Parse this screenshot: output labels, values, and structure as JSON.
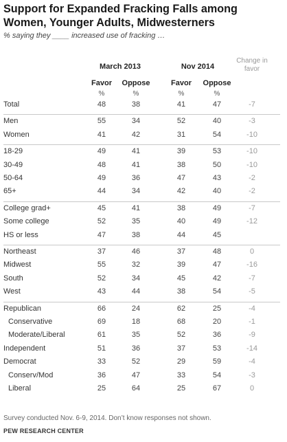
{
  "title": "Support for Expanded Fracking Falls among Women, Younger Adults, Midwesterners",
  "subtitle": "% saying they ____ increased use of fracking …",
  "column_groups": [
    "March 2013",
    "Nov 2014"
  ],
  "change_header": "Change in favor",
  "columns": [
    "Favor",
    "Oppose",
    "Favor",
    "Oppose"
  ],
  "pct_symbol": "%",
  "note": "Survey conducted Nov. 6-9, 2014. Don’t know responses not shown.",
  "source": "PEW RESEARCH CENTER",
  "chart_data": {
    "type": "table",
    "title": "Support for Expanded Fracking Falls among Women, Younger Adults, Midwesterners",
    "column_groups": [
      "March 2013",
      "Nov 2014"
    ],
    "columns": [
      "Favor",
      "Oppose",
      "Favor",
      "Oppose",
      "Change in favor"
    ],
    "rows": [
      {
        "label": "Total",
        "values": [
          "48",
          "38",
          "41",
          "47",
          "-7"
        ],
        "sub": false,
        "sep": false
      },
      {
        "label": "Men",
        "values": [
          "55",
          "34",
          "52",
          "40",
          "-3"
        ],
        "sub": false,
        "sep": true
      },
      {
        "label": "Women",
        "values": [
          "41",
          "42",
          "31",
          "54",
          "-10"
        ],
        "sub": false,
        "sep": false
      },
      {
        "label": "18-29",
        "values": [
          "49",
          "41",
          "39",
          "53",
          "-10"
        ],
        "sub": false,
        "sep": true
      },
      {
        "label": "30-49",
        "values": [
          "48",
          "41",
          "38",
          "50",
          "-10"
        ],
        "sub": false,
        "sep": false
      },
      {
        "label": "50-64",
        "values": [
          "49",
          "36",
          "47",
          "43",
          "-2"
        ],
        "sub": false,
        "sep": false
      },
      {
        "label": "65+",
        "values": [
          "44",
          "34",
          "42",
          "40",
          "-2"
        ],
        "sub": false,
        "sep": false
      },
      {
        "label": "College grad+",
        "values": [
          "45",
          "41",
          "38",
          "49",
          "-7"
        ],
        "sub": false,
        "sep": true
      },
      {
        "label": "Some college",
        "values": [
          "52",
          "35",
          "40",
          "49",
          "-12"
        ],
        "sub": false,
        "sep": false
      },
      {
        "label": "HS or less",
        "values": [
          "47",
          "38",
          "44",
          "45",
          ""
        ],
        "sub": false,
        "sep": false
      },
      {
        "label": "Northeast",
        "values": [
          "37",
          "46",
          "37",
          "48",
          "0"
        ],
        "sub": false,
        "sep": true
      },
      {
        "label": "Midwest",
        "values": [
          "55",
          "32",
          "39",
          "47",
          "-16"
        ],
        "sub": false,
        "sep": false
      },
      {
        "label": "South",
        "values": [
          "52",
          "34",
          "45",
          "42",
          "-7"
        ],
        "sub": false,
        "sep": false
      },
      {
        "label": "West",
        "values": [
          "43",
          "44",
          "38",
          "54",
          "-5"
        ],
        "sub": false,
        "sep": false
      },
      {
        "label": "Republican",
        "values": [
          "66",
          "24",
          "62",
          "25",
          "-4"
        ],
        "sub": false,
        "sep": true
      },
      {
        "label": "Conservative",
        "values": [
          "69",
          "18",
          "68",
          "20",
          "-1"
        ],
        "sub": true,
        "sep": false
      },
      {
        "label": "Moderate/Liberal",
        "values": [
          "61",
          "35",
          "52",
          "36",
          "-9"
        ],
        "sub": true,
        "sep": false
      },
      {
        "label": "Independent",
        "values": [
          "51",
          "36",
          "37",
          "53",
          "-14"
        ],
        "sub": false,
        "sep": false
      },
      {
        "label": "Democrat",
        "values": [
          "33",
          "52",
          "29",
          "59",
          "-4"
        ],
        "sub": false,
        "sep": false
      },
      {
        "label": "Conserv/Mod",
        "values": [
          "36",
          "47",
          "33",
          "54",
          "-3"
        ],
        "sub": true,
        "sep": false
      },
      {
        "label": "Liberal",
        "values": [
          "25",
          "64",
          "25",
          "67",
          "0"
        ],
        "sub": true,
        "sep": false
      }
    ]
  }
}
